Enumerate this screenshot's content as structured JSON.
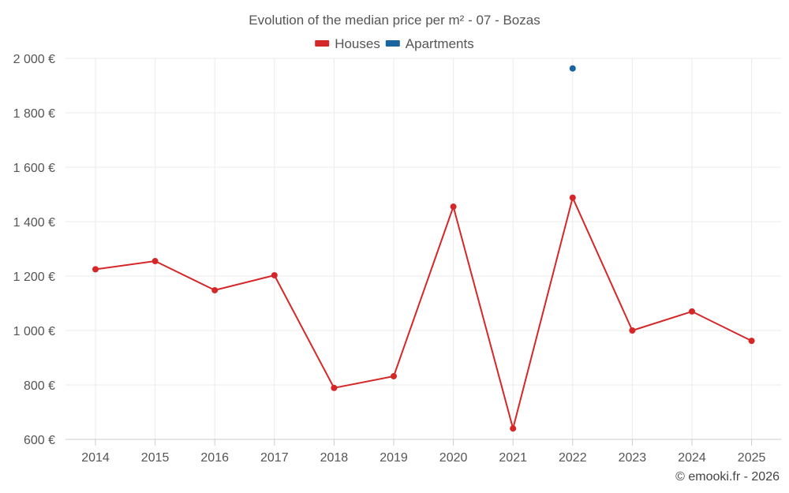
{
  "chart_data": {
    "type": "line",
    "title": "Evolution of the median price per m² - 07 - Bozas",
    "xlabel": "",
    "ylabel": "",
    "categories": [
      "2014",
      "2015",
      "2016",
      "2017",
      "2018",
      "2019",
      "2020",
      "2021",
      "2022",
      "2023",
      "2024",
      "2025"
    ],
    "ylim": [
      600,
      2000
    ],
    "yticks": [
      600,
      800,
      1000,
      1200,
      1400,
      1600,
      1800,
      2000
    ],
    "ytick_labels": [
      "600 €",
      "800 €",
      "1 000 €",
      "1 200 €",
      "1 400 €",
      "1 600 €",
      "1 800 €",
      "2 000 €"
    ],
    "grid": true,
    "legend_position": "top-center",
    "series": [
      {
        "name": "Houses",
        "color": "#d62728",
        "values": [
          1225,
          1255,
          1148,
          1203,
          789,
          832,
          1455,
          640,
          1488,
          1000,
          1070,
          962
        ]
      },
      {
        "name": "Apartments",
        "color": "#1a64a0",
        "values": [
          null,
          null,
          null,
          null,
          null,
          null,
          null,
          null,
          1963,
          null,
          null,
          null
        ]
      }
    ]
  },
  "credit": "© emooki.fr - 2026"
}
